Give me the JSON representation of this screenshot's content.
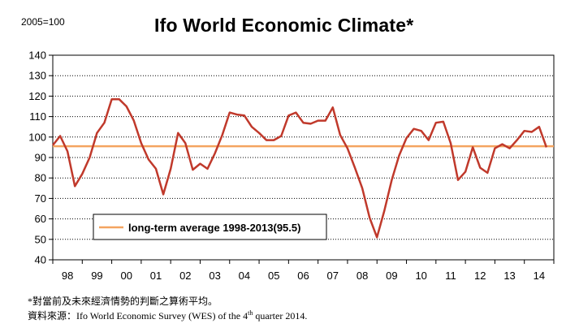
{
  "header": {
    "base_label": "2005=100",
    "title": "Ifo World Economic Climate*"
  },
  "chart_data": {
    "type": "line",
    "title": "Ifo World Economic Climate*",
    "ylabel": "2005=100",
    "ylim": [
      40,
      140
    ],
    "yticks": [
      40,
      50,
      60,
      70,
      80,
      90,
      100,
      110,
      120,
      130,
      140
    ],
    "xlim": [
      1998.0,
      2015.0
    ],
    "xtick_labels": [
      {
        "label": "98",
        "x": 1998.5
      },
      {
        "label": "99",
        "x": 1999.5
      },
      {
        "label": "00",
        "x": 2000.5
      },
      {
        "label": "01",
        "x": 2001.5
      },
      {
        "label": "02",
        "x": 2002.5
      },
      {
        "label": "03",
        "x": 2003.5
      },
      {
        "label": "04",
        "x": 2004.5
      },
      {
        "label": "05",
        "x": 2005.5
      },
      {
        "label": "06",
        "x": 2006.5
      },
      {
        "label": "07",
        "x": 2007.5
      },
      {
        "label": "08",
        "x": 2008.5
      },
      {
        "label": "09",
        "x": 2009.5
      },
      {
        "label": "10",
        "x": 2010.5
      },
      {
        "label": "11",
        "x": 2011.5
      },
      {
        "label": "12",
        "x": 2012.5
      },
      {
        "label": "13",
        "x": 2013.5
      },
      {
        "label": "14",
        "x": 2014.5
      }
    ],
    "grid": true,
    "series": [
      {
        "name": "Ifo World Economic Climate",
        "color": "#C0392B",
        "x": [
          1998.0,
          1998.25,
          1998.5,
          1998.75,
          1999.0,
          1999.25,
          1999.5,
          1999.75,
          2000.0,
          2000.25,
          2000.5,
          2000.75,
          2001.0,
          2001.25,
          2001.5,
          2001.75,
          2002.0,
          2002.25,
          2002.5,
          2002.75,
          2003.0,
          2003.25,
          2003.5,
          2003.75,
          2004.0,
          2004.25,
          2004.5,
          2004.75,
          2005.0,
          2005.25,
          2005.5,
          2005.75,
          2006.0,
          2006.25,
          2006.5,
          2006.75,
          2007.0,
          2007.25,
          2007.5,
          2007.75,
          2008.0,
          2008.25,
          2008.5,
          2008.75,
          2009.0,
          2009.25,
          2009.5,
          2009.75,
          2010.0,
          2010.25,
          2010.5,
          2010.75,
          2011.0,
          2011.25,
          2011.5,
          2011.75,
          2012.0,
          2012.25,
          2012.5,
          2012.75,
          2013.0,
          2013.25,
          2013.5,
          2013.75,
          2014.0,
          2014.25,
          2014.5,
          2014.75
        ],
        "values": [
          96.0,
          100.5,
          93.0,
          76.0,
          82.0,
          90.0,
          102.0,
          107.0,
          118.5,
          118.5,
          115.0,
          108.0,
          97.0,
          89.0,
          84.5,
          72.0,
          84.5,
          102.0,
          97.0,
          84.0,
          87.0,
          84.5,
          92.0,
          101.0,
          112.0,
          111.0,
          110.5,
          105.0,
          102.0,
          98.5,
          98.5,
          100.5,
          110.5,
          112.0,
          107.0,
          106.5,
          108.0,
          108.0,
          114.5,
          101.0,
          94.5,
          85.0,
          75.0,
          60.5,
          51.0,
          64.0,
          79.0,
          91.0,
          99.5,
          104.0,
          103.0,
          98.5,
          107.0,
          107.5,
          97.0,
          79.0,
          83.0,
          95.0,
          85.0,
          82.5,
          94.5,
          96.5,
          94.5,
          98.5,
          103.0,
          102.5,
          105.0,
          95.0
        ]
      },
      {
        "name": "long-term average 1998-2013(95.5)",
        "color": "#F4A460",
        "value": 95.5
      }
    ],
    "legend": {
      "label": "long-term average 1998-2013(95.5)",
      "placement": "bottom-left"
    }
  },
  "footnotes": {
    "note1": "*對當前及未來經濟情勢的判斷之算術平均。",
    "note2_prefix": "資料來源：Ifo World Economic Survey (WES) of the 4",
    "note2_sup": "th",
    "note2_suffix": " quarter 2014."
  }
}
